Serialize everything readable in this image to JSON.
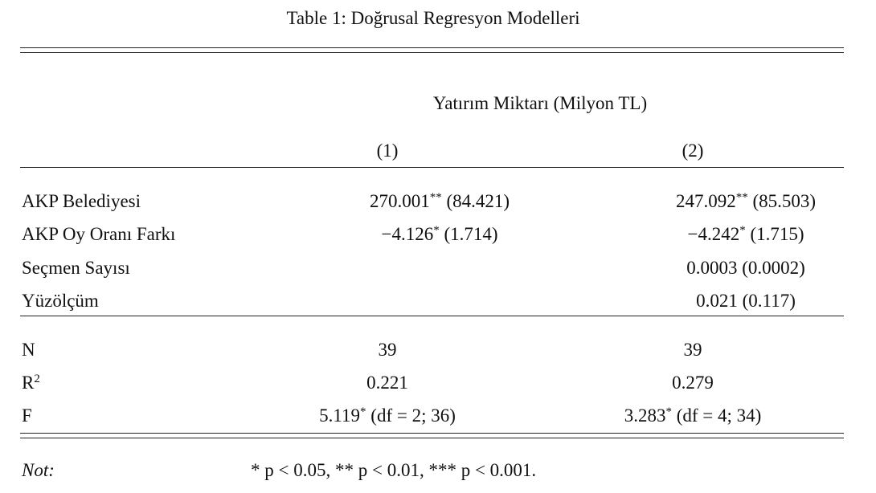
{
  "title": "Table 1: Doğrusal Regresyon Modelleri",
  "dependent_variable": "Yatırım Miktarı (Milyon TL)",
  "model_numbers": [
    "(1)",
    "(2)"
  ],
  "coefficients": [
    {
      "label": "AKP Belediyesi",
      "cells": [
        {
          "coef": "270.001",
          "stars": "**",
          "se": "(84.421)"
        },
        {
          "coef": "247.092",
          "stars": "**",
          "se": "(85.503)"
        }
      ]
    },
    {
      "label": "AKP Oy Oranı Farkı",
      "cells": [
        {
          "coef": "−4.126",
          "stars": "*",
          "se": "(1.714)"
        },
        {
          "coef": "−4.242",
          "stars": "*",
          "se": "(1.715)"
        }
      ]
    },
    {
      "label": "Seçmen Sayısı",
      "cells": [
        null,
        {
          "coef": "0.0003",
          "se": "(0.0002)"
        }
      ]
    },
    {
      "label": "Yüzölçüm",
      "cells": [
        null,
        {
          "coef": "0.021",
          "se": "(0.117)"
        }
      ]
    }
  ],
  "statistics": [
    {
      "label": {
        "text": "N"
      },
      "cells": [
        {
          "coef": "39"
        },
        {
          "coef": "39"
        }
      ]
    },
    {
      "label": {
        "text": "R",
        "sup": "2"
      },
      "cells": [
        {
          "coef": "0.221"
        },
        {
          "coef": "0.279"
        }
      ]
    },
    {
      "label": {
        "text": "F"
      },
      "cells": [
        {
          "coef": "5.119",
          "stars": "*",
          "se": "(df = 2; 36)"
        },
        {
          "coef": "3.283",
          "stars": "*",
          "se": "(df = 4; 34)"
        }
      ]
    }
  ],
  "note": {
    "label": "Not:",
    "text": "* p < 0.05, ** p < 0.01, *** p < 0.001."
  }
}
